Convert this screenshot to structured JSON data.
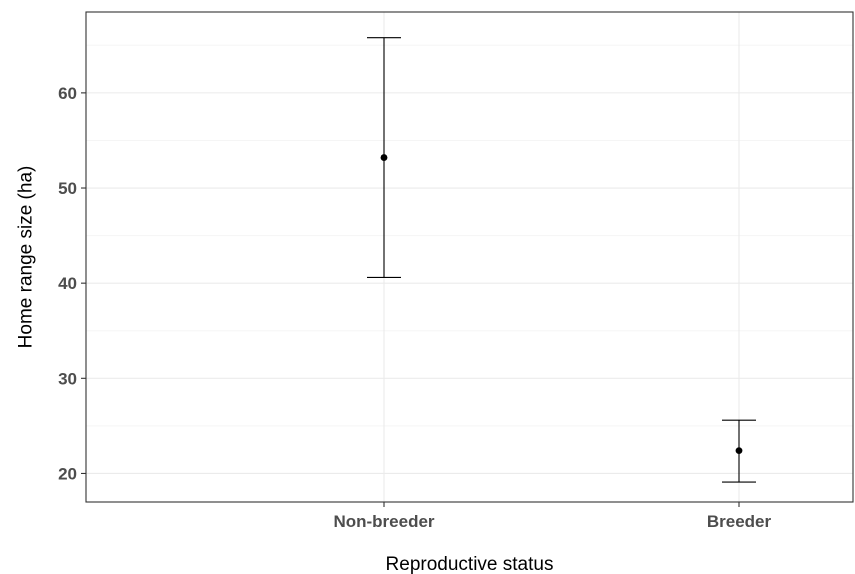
{
  "chart_data": {
    "type": "scatter",
    "title": "",
    "xlabel": "Reproductive status",
    "ylabel": "Home range size (ha)",
    "categories": [
      "Non-breeder",
      "Breeder"
    ],
    "series": [
      {
        "points": [
          {
            "category": "Non-breeder",
            "y": 53.2,
            "lower": 40.6,
            "upper": 65.8
          },
          {
            "category": "Breeder",
            "y": 22.4,
            "lower": 19.1,
            "upper": 25.6
          }
        ]
      }
    ],
    "ylim": [
      17,
      68.5
    ],
    "yticks": [
      20,
      30,
      40,
      50,
      60
    ],
    "grid": true,
    "legend": "none",
    "colors": {
      "panel_border": "#333333",
      "grid_major": "#ebebeb",
      "grid_minor": "#f5f5f5",
      "mark": "#000000",
      "tick_label": "#4d4d4d"
    }
  }
}
